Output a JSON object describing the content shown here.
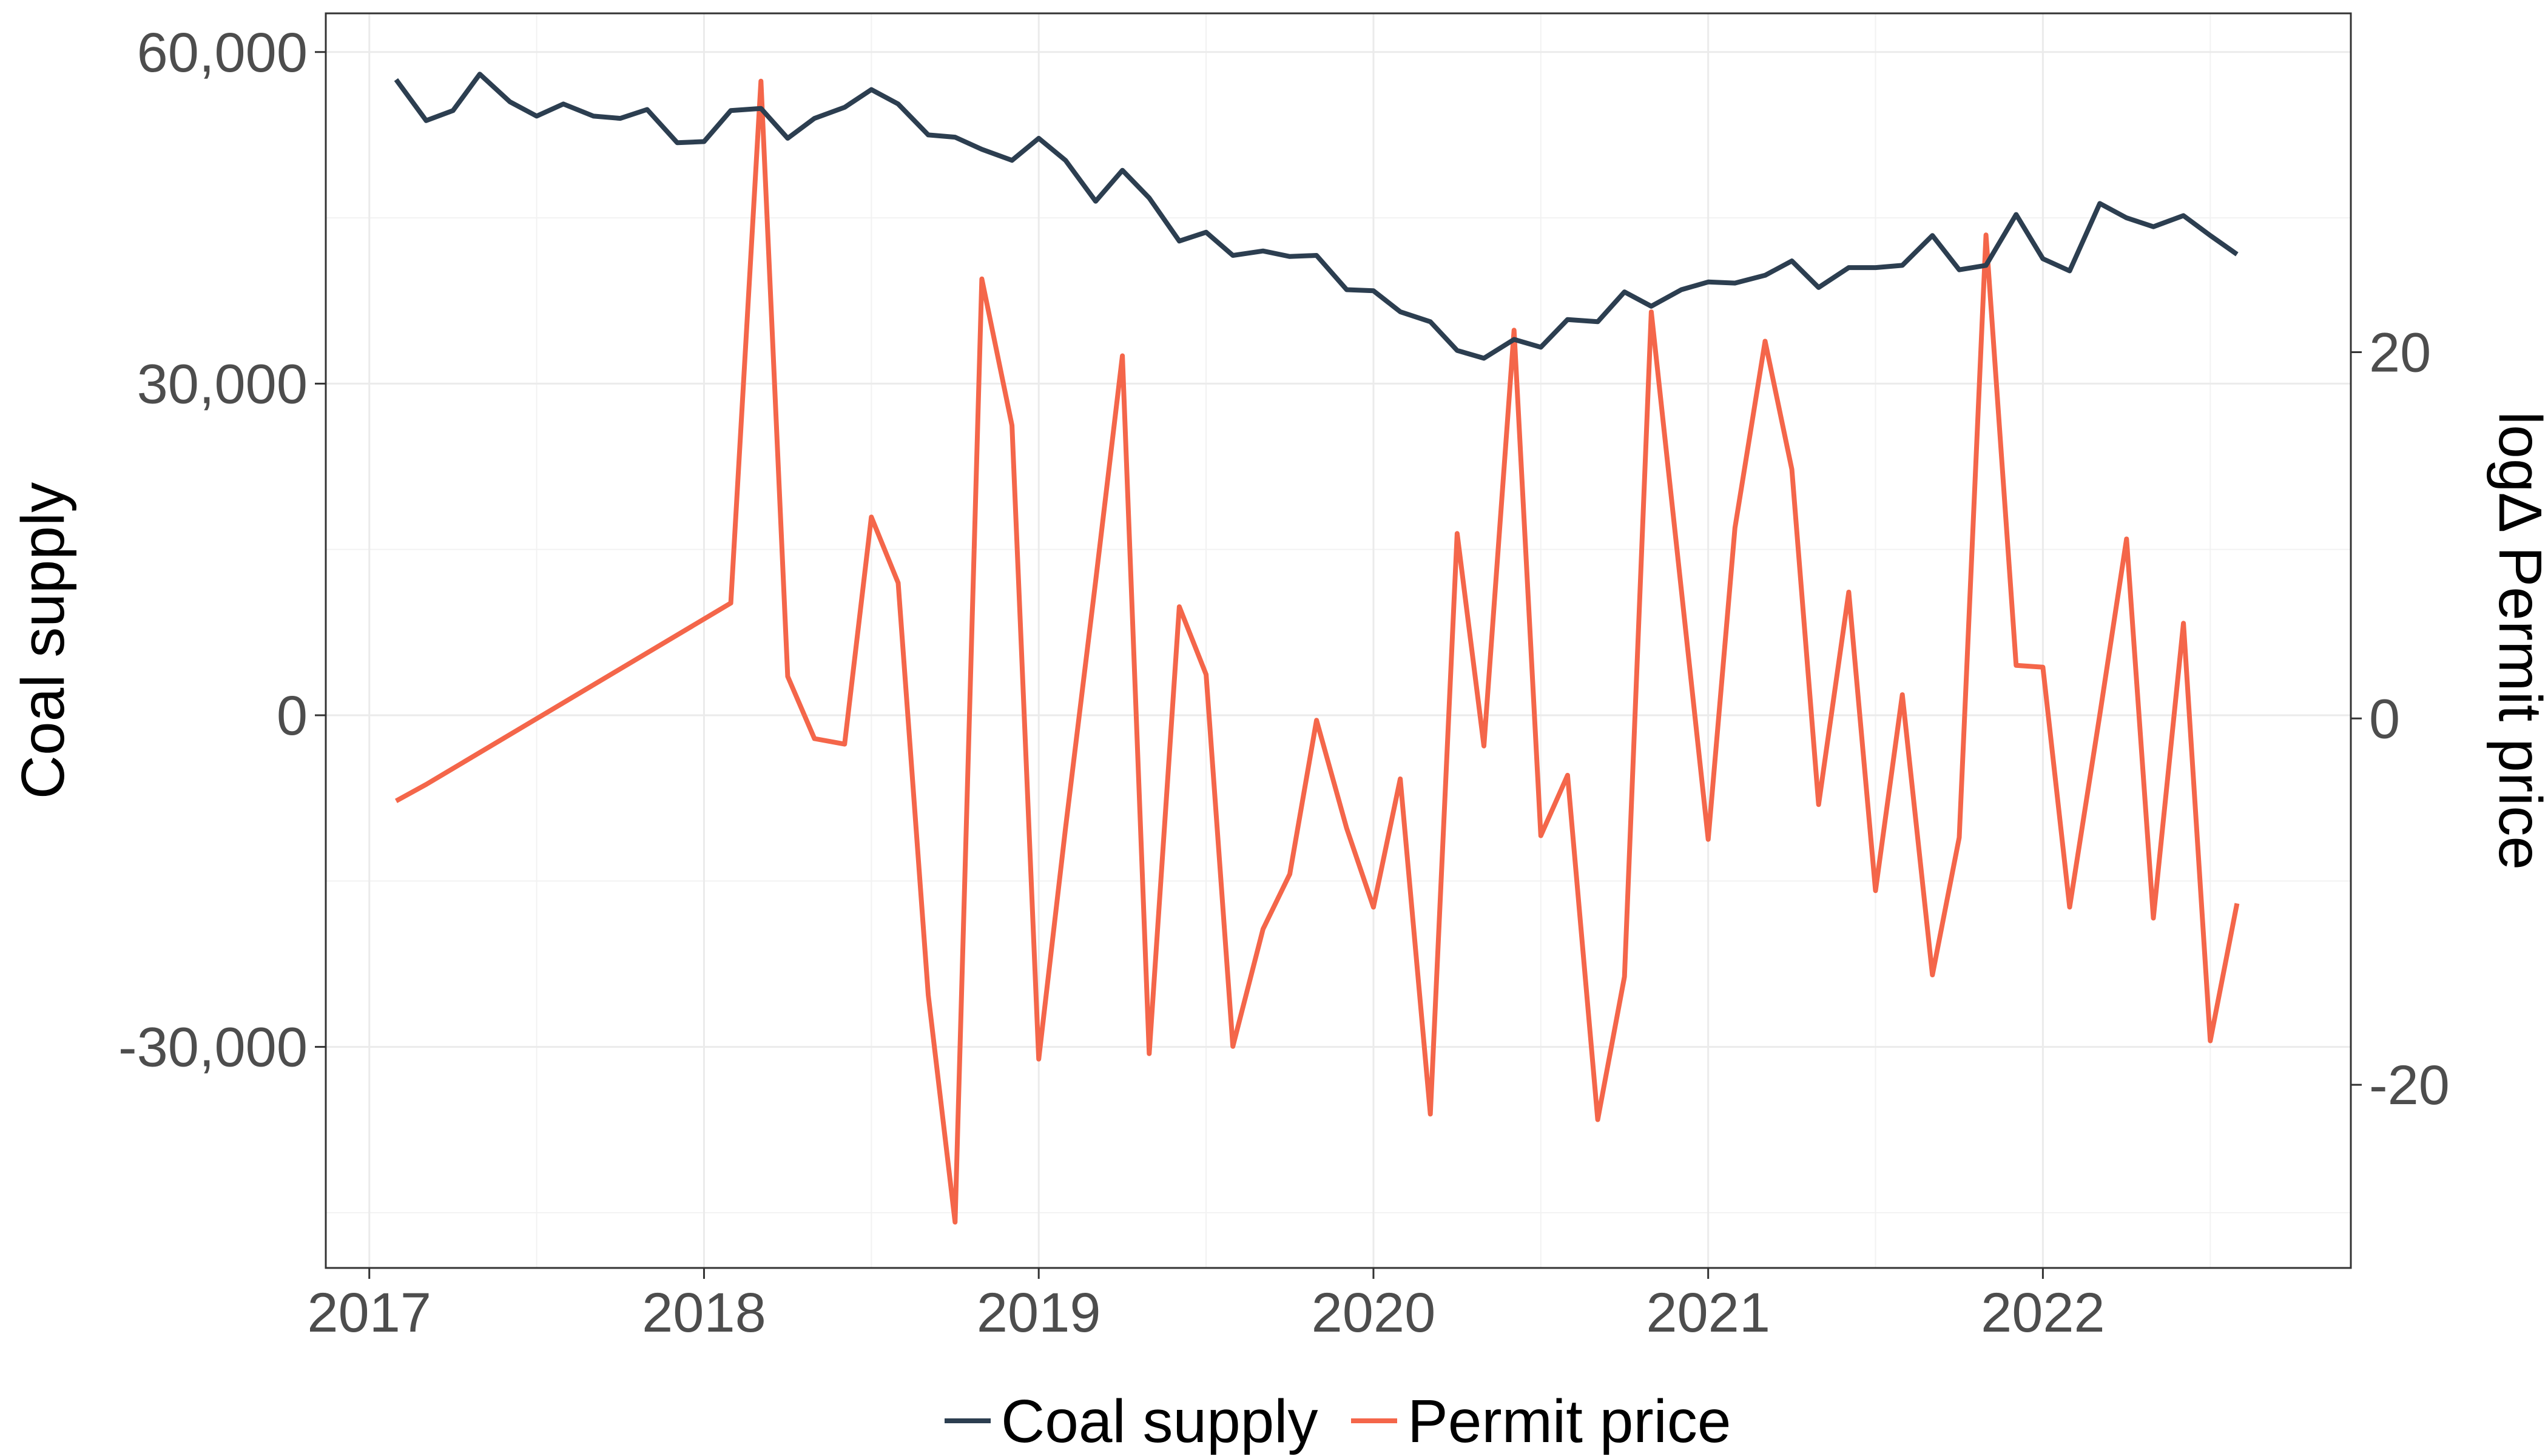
{
  "chart_data": {
    "type": "line",
    "xlabel": "",
    "ylabel_left": "Coal supply",
    "ylabel_right": "logΔ Permit price",
    "x_ticks": [
      "2017",
      "2018",
      "2019",
      "2020",
      "2021",
      "2022"
    ],
    "y_left_ticks": [
      "60,000",
      "30,000",
      "0",
      "-30,000"
    ],
    "y_right_ticks": [
      "20",
      "0",
      "-20"
    ],
    "xlim": [
      2016.87,
      2022.92
    ],
    "y_left_lim": [
      -50000,
      63500
    ],
    "y_right_lim": [
      -30,
      38.5
    ],
    "grid": true,
    "legend_position": "bottom",
    "series": [
      {
        "name": "Coal supply",
        "axis": "left",
        "color": "#2c3e50",
        "points": [
          [
            2017.08,
            57500
          ],
          [
            2017.17,
            53800
          ],
          [
            2017.25,
            54700
          ],
          [
            2017.33,
            58000
          ],
          [
            2017.42,
            55500
          ],
          [
            2017.5,
            54200
          ],
          [
            2017.58,
            55300
          ],
          [
            2017.67,
            54200
          ],
          [
            2017.75,
            54000
          ],
          [
            2017.83,
            54800
          ],
          [
            2017.92,
            51800
          ],
          [
            2018.0,
            51900
          ],
          [
            2018.08,
            54700
          ],
          [
            2018.17,
            54900
          ],
          [
            2018.25,
            52200
          ],
          [
            2018.33,
            54000
          ],
          [
            2018.42,
            55000
          ],
          [
            2018.5,
            56600
          ],
          [
            2018.58,
            55300
          ],
          [
            2018.67,
            52500
          ],
          [
            2018.75,
            52300
          ],
          [
            2018.83,
            51200
          ],
          [
            2018.92,
            50200
          ],
          [
            2019.0,
            52200
          ],
          [
            2019.08,
            50200
          ],
          [
            2019.17,
            46500
          ],
          [
            2019.25,
            49300
          ],
          [
            2019.33,
            46800
          ],
          [
            2019.42,
            42900
          ],
          [
            2019.5,
            43700
          ],
          [
            2019.58,
            41600
          ],
          [
            2019.67,
            42000
          ],
          [
            2019.75,
            41500
          ],
          [
            2019.83,
            41600
          ],
          [
            2019.92,
            38500
          ],
          [
            2020.0,
            38400
          ],
          [
            2020.08,
            36500
          ],
          [
            2020.17,
            35600
          ],
          [
            2020.25,
            33000
          ],
          [
            2020.33,
            32300
          ],
          [
            2020.42,
            34000
          ],
          [
            2020.5,
            33300
          ],
          [
            2020.58,
            35800
          ],
          [
            2020.67,
            35600
          ],
          [
            2020.75,
            38300
          ],
          [
            2020.83,
            37000
          ],
          [
            2020.92,
            38500
          ],
          [
            2021.0,
            39200
          ],
          [
            2021.08,
            39100
          ],
          [
            2021.17,
            39800
          ],
          [
            2021.25,
            41100
          ],
          [
            2021.33,
            38700
          ],
          [
            2021.42,
            40500
          ],
          [
            2021.5,
            40500
          ],
          [
            2021.58,
            40700
          ],
          [
            2021.67,
            43400
          ],
          [
            2021.75,
            40300
          ],
          [
            2021.83,
            40700
          ],
          [
            2021.92,
            45300
          ],
          [
            2022.0,
            41300
          ],
          [
            2022.08,
            40200
          ],
          [
            2022.17,
            46300
          ],
          [
            2022.25,
            45000
          ],
          [
            2022.33,
            44200
          ],
          [
            2022.42,
            45200
          ],
          [
            2022.5,
            43400
          ],
          [
            2022.58,
            41700
          ]
        ]
      },
      {
        "name": "Permit price",
        "axis": "right",
        "color": "#f4664a",
        "points": [
          [
            2017.08,
            -4.5
          ],
          [
            2017.17,
            -3.6
          ],
          [
            2018.08,
            6.3
          ],
          [
            2018.17,
            34.8
          ],
          [
            2018.25,
            2.3
          ],
          [
            2018.33,
            -1.1
          ],
          [
            2018.42,
            -1.4
          ],
          [
            2018.5,
            11.0
          ],
          [
            2018.58,
            7.4
          ],
          [
            2018.67,
            -15.1
          ],
          [
            2018.75,
            -27.5
          ],
          [
            2018.83,
            24.0
          ],
          [
            2018.92,
            16.0
          ],
          [
            2019.0,
            -18.6
          ],
          [
            2019.08,
            -6.0
          ],
          [
            2019.17,
            7.5
          ],
          [
            2019.25,
            19.8
          ],
          [
            2019.33,
            -18.3
          ],
          [
            2019.42,
            6.1
          ],
          [
            2019.5,
            2.4
          ],
          [
            2019.58,
            -17.9
          ],
          [
            2019.67,
            -11.5
          ],
          [
            2019.75,
            -8.5
          ],
          [
            2019.83,
            -0.1
          ],
          [
            2019.92,
            -6.0
          ],
          [
            2020.0,
            -10.3
          ],
          [
            2020.08,
            -3.3
          ],
          [
            2020.17,
            -21.6
          ],
          [
            2020.25,
            10.1
          ],
          [
            2020.33,
            -1.5
          ],
          [
            2020.42,
            21.2
          ],
          [
            2020.5,
            -6.4
          ],
          [
            2020.58,
            -3.1
          ],
          [
            2020.67,
            -21.9
          ],
          [
            2020.75,
            -14.1
          ],
          [
            2020.83,
            22.2
          ],
          [
            2020.92,
            7.0
          ],
          [
            2021.0,
            -6.6
          ],
          [
            2021.08,
            10.4
          ],
          [
            2021.17,
            20.6
          ],
          [
            2021.25,
            13.6
          ],
          [
            2021.33,
            -4.7
          ],
          [
            2021.42,
            6.9
          ],
          [
            2021.5,
            -9.4
          ],
          [
            2021.58,
            1.3
          ],
          [
            2021.67,
            -14.0
          ],
          [
            2021.75,
            -6.5
          ],
          [
            2021.83,
            26.4
          ],
          [
            2021.92,
            2.9
          ],
          [
            2022.0,
            2.8
          ],
          [
            2022.08,
            -10.3
          ],
          [
            2022.17,
            0.2
          ],
          [
            2022.25,
            9.8
          ],
          [
            2022.33,
            -10.9
          ],
          [
            2022.42,
            5.2
          ],
          [
            2022.5,
            -17.6
          ],
          [
            2022.58,
            -10.1
          ]
        ]
      }
    ]
  }
}
